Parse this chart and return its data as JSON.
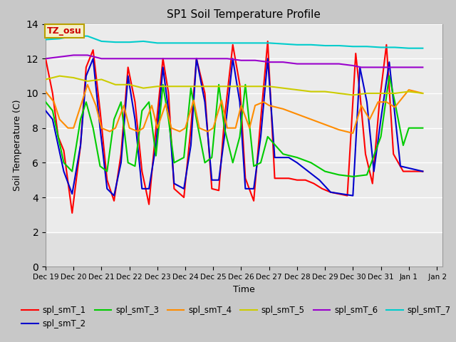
{
  "title": "SP1 Soil Temperature Profile",
  "xlabel": "Time",
  "ylabel": "Soil Temperature (C)",
  "ylim": [
    0,
    14
  ],
  "yticks": [
    0,
    2,
    4,
    6,
    8,
    10,
    12,
    14
  ],
  "annotation_text": "TZ_osu",
  "annotation_color": "#cc0000",
  "annotation_bg": "#f5f0c8",
  "annotation_border": "#b8a000",
  "series": [
    {
      "label": "spl_smT_1",
      "color": "#ff0000",
      "lw": 1.5,
      "data_x": [
        19.0,
        19.25,
        19.45,
        19.65,
        19.95,
        20.25,
        20.45,
        20.7,
        20.95,
        21.2,
        21.45,
        21.7,
        21.95,
        22.2,
        22.45,
        22.7,
        22.95,
        23.2,
        23.4,
        23.6,
        23.95,
        24.2,
        24.4,
        24.7,
        24.95,
        25.2,
        25.4,
        25.7,
        25.95,
        26.15,
        26.45,
        26.7,
        26.95,
        27.2,
        27.45,
        27.7,
        28.0,
        28.3,
        28.6,
        28.9,
        29.2,
        29.5,
        29.8,
        30.1,
        30.25,
        30.45,
        30.7,
        30.95,
        31.2,
        31.45,
        31.8,
        32.5
      ],
      "data_y": [
        12.0,
        10.0,
        7.5,
        6.7,
        3.1,
        7.0,
        11.5,
        12.5,
        9.0,
        5.0,
        3.8,
        6.5,
        11.5,
        9.5,
        5.5,
        3.6,
        8.0,
        12.0,
        10.0,
        4.5,
        4.0,
        8.0,
        12.0,
        10.0,
        4.5,
        4.4,
        8.5,
        12.8,
        10.5,
        5.1,
        3.8,
        8.5,
        13.0,
        5.1,
        5.1,
        5.1,
        5.0,
        5.0,
        4.8,
        4.5,
        4.3,
        4.2,
        4.1,
        12.3,
        10.0,
        6.5,
        4.8,
        9.5,
        12.8,
        6.5,
        5.5,
        5.5
      ]
    },
    {
      "label": "spl_smT_2",
      "color": "#0000cc",
      "lw": 1.5,
      "data_x": [
        19.0,
        19.25,
        19.45,
        19.65,
        19.95,
        20.25,
        20.45,
        20.7,
        20.95,
        21.2,
        21.45,
        21.7,
        21.95,
        22.2,
        22.45,
        22.7,
        22.95,
        23.2,
        23.4,
        23.6,
        23.95,
        24.2,
        24.4,
        24.7,
        24.95,
        25.2,
        25.4,
        25.7,
        25.95,
        26.15,
        26.45,
        26.7,
        26.95,
        27.2,
        27.45,
        27.7,
        28.0,
        28.4,
        28.8,
        29.2,
        29.6,
        30.0,
        30.25,
        30.5,
        30.75,
        31.0,
        31.3,
        31.7,
        32.5
      ],
      "data_y": [
        9.0,
        8.5,
        7.0,
        5.5,
        4.2,
        7.0,
        11.0,
        12.0,
        8.0,
        4.5,
        4.1,
        6.0,
        11.0,
        8.5,
        4.5,
        4.5,
        7.0,
        11.5,
        9.0,
        4.8,
        4.5,
        7.0,
        12.0,
        9.5,
        5.0,
        5.0,
        7.5,
        12.0,
        9.5,
        4.5,
        4.5,
        7.5,
        12.0,
        6.3,
        6.3,
        6.3,
        6.0,
        5.5,
        5.0,
        4.3,
        4.2,
        4.1,
        11.5,
        9.5,
        5.5,
        8.5,
        11.8,
        5.8,
        5.5
      ]
    },
    {
      "label": "spl_smT_3",
      "color": "#00cc00",
      "lw": 1.5,
      "data_x": [
        19.0,
        19.25,
        19.45,
        19.65,
        19.95,
        20.25,
        20.45,
        20.7,
        20.95,
        21.2,
        21.45,
        21.7,
        21.95,
        22.2,
        22.45,
        22.7,
        22.95,
        23.2,
        23.4,
        23.6,
        23.95,
        24.2,
        24.4,
        24.7,
        24.95,
        25.2,
        25.4,
        25.7,
        25.95,
        26.15,
        26.45,
        26.7,
        26.95,
        27.5,
        28.0,
        28.5,
        29.0,
        29.5,
        30.0,
        30.5,
        31.0,
        31.3,
        31.5,
        31.8,
        32.0,
        32.5
      ],
      "data_y": [
        9.5,
        9.0,
        7.5,
        6.0,
        5.5,
        8.5,
        9.5,
        8.0,
        5.8,
        5.5,
        8.5,
        9.5,
        6.0,
        5.8,
        9.0,
        9.5,
        6.4,
        10.5,
        8.5,
        6.0,
        6.3,
        10.3,
        8.5,
        6.0,
        6.3,
        10.5,
        8.0,
        6.0,
        7.5,
        10.5,
        5.8,
        6.0,
        7.5,
        6.5,
        6.3,
        6.0,
        5.5,
        5.3,
        5.2,
        5.3,
        7.5,
        11.0,
        9.5,
        7.0,
        8.0,
        8.0
      ]
    },
    {
      "label": "spl_smT_4",
      "color": "#ff8c00",
      "lw": 1.5,
      "data_x": [
        19.0,
        19.3,
        19.5,
        19.8,
        20.0,
        20.3,
        20.5,
        20.8,
        21.0,
        21.3,
        21.5,
        21.8,
        22.0,
        22.3,
        22.5,
        22.8,
        23.0,
        23.3,
        23.5,
        23.8,
        24.0,
        24.3,
        24.5,
        24.8,
        25.0,
        25.3,
        25.5,
        25.8,
        26.0,
        26.3,
        26.5,
        26.8,
        27.0,
        27.5,
        28.0,
        28.5,
        29.0,
        29.5,
        30.0,
        30.3,
        30.6,
        30.9,
        31.2,
        31.5,
        32.0,
        32.5
      ],
      "data_y": [
        10.1,
        9.5,
        8.5,
        8.0,
        8.0,
        9.5,
        10.5,
        9.3,
        8.0,
        7.8,
        8.0,
        9.3,
        8.0,
        7.8,
        8.0,
        9.3,
        8.0,
        9.4,
        8.0,
        7.8,
        8.0,
        9.6,
        8.0,
        7.8,
        8.0,
        9.6,
        8.0,
        8.0,
        9.3,
        8.0,
        9.3,
        9.5,
        9.3,
        9.1,
        8.8,
        8.5,
        8.2,
        7.9,
        7.7,
        9.3,
        8.5,
        9.5,
        9.5,
        9.2,
        10.2,
        10.0
      ]
    },
    {
      "label": "spl_smT_5",
      "color": "#cccc00",
      "lw": 1.5,
      "data_x": [
        19.0,
        19.5,
        20.0,
        20.5,
        21.0,
        21.5,
        22.0,
        22.5,
        23.0,
        23.5,
        24.0,
        24.5,
        25.0,
        25.5,
        26.0,
        26.5,
        27.0,
        27.5,
        28.0,
        28.5,
        29.0,
        29.5,
        30.0,
        30.5,
        31.0,
        31.5,
        32.0,
        32.5
      ],
      "data_y": [
        10.8,
        11.0,
        10.9,
        10.7,
        10.8,
        10.5,
        10.5,
        10.3,
        10.4,
        10.4,
        10.4,
        10.4,
        10.4,
        10.4,
        10.4,
        10.4,
        10.4,
        10.3,
        10.2,
        10.1,
        10.1,
        10.0,
        9.9,
        10.0,
        10.0,
        10.0,
        10.1,
        10.0
      ]
    },
    {
      "label": "spl_smT_6",
      "color": "#9900cc",
      "lw": 1.5,
      "data_x": [
        19.0,
        19.5,
        20.0,
        20.5,
        21.0,
        21.5,
        22.0,
        22.5,
        23.0,
        23.5,
        24.0,
        24.5,
        25.0,
        25.5,
        26.0,
        26.5,
        27.0,
        27.5,
        28.0,
        28.5,
        29.0,
        29.5,
        30.0,
        30.3,
        30.5,
        30.8,
        31.0,
        31.3,
        31.5,
        32.0,
        32.5
      ],
      "data_y": [
        12.0,
        12.1,
        12.2,
        12.2,
        12.0,
        12.0,
        12.0,
        12.0,
        12.0,
        12.0,
        12.0,
        12.0,
        12.0,
        12.0,
        11.9,
        11.9,
        11.8,
        11.8,
        11.7,
        11.7,
        11.7,
        11.7,
        11.6,
        11.5,
        11.5,
        11.5,
        11.5,
        11.5,
        11.5,
        11.5,
        11.5
      ]
    },
    {
      "label": "spl_smT_7",
      "color": "#00cccc",
      "lw": 1.5,
      "data_x": [
        19.0,
        19.5,
        20.0,
        20.5,
        21.0,
        21.5,
        22.0,
        22.5,
        23.0,
        23.5,
        24.0,
        24.5,
        25.0,
        25.5,
        26.0,
        26.5,
        27.0,
        27.5,
        28.0,
        28.5,
        29.0,
        29.5,
        30.0,
        30.5,
        31.0,
        31.5,
        32.0,
        32.5
      ],
      "data_y": [
        13.1,
        13.15,
        13.3,
        13.3,
        13.0,
        12.95,
        12.95,
        13.0,
        12.9,
        12.9,
        12.9,
        12.9,
        12.9,
        12.9,
        12.9,
        12.9,
        12.9,
        12.85,
        12.8,
        12.8,
        12.75,
        12.75,
        12.7,
        12.7,
        12.65,
        12.65,
        12.6,
        12.6
      ]
    }
  ],
  "xtick_labels": [
    "Dec 19",
    "Dec 20",
    "Dec 21",
    "Dec 22",
    "Dec 23",
    "Dec 24",
    "Dec 25",
    "Dec 26",
    "Dec 27",
    "Dec 28",
    "Dec 29",
    "Dec 30",
    "Dec 31",
    "Jan 1",
    " Jan 2"
  ],
  "xtick_positions": [
    19,
    20,
    21,
    22,
    23,
    24,
    25,
    26,
    27,
    28,
    29,
    30,
    31,
    32,
    33
  ],
  "xlim": [
    19,
    33.2
  ],
  "fig_facecolor": "#c8c8c8",
  "ax_facecolor": "#e0e0e0",
  "shade_above": 2,
  "shade_color": "#ebebeb"
}
